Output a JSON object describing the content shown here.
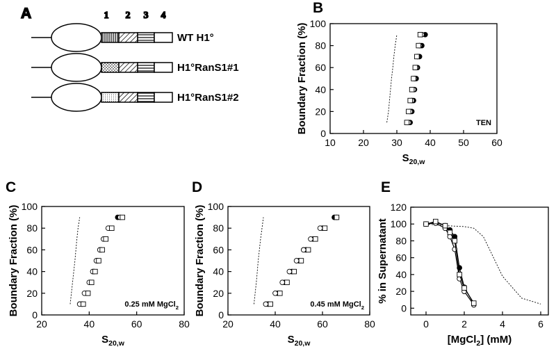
{
  "panel_labels": [
    "A",
    "B",
    "C",
    "D",
    "E"
  ],
  "diagram": {
    "domain_labels": [
      "1",
      "2",
      "3",
      "4"
    ],
    "constructs": [
      "WT H1°",
      "H1°RanS1#1",
      "H1°RanS1#2"
    ]
  },
  "chart_data": [
    {
      "type": "scatter",
      "x_label": [
        "S",
        "20,w"
      ],
      "y_label": "Boundary Fraction (%)",
      "annotation": [
        "TEN"
      ],
      "xlim": [
        10,
        60
      ],
      "xticks": [
        10,
        20,
        30,
        40,
        50,
        60
      ],
      "ylim": [
        0,
        100
      ],
      "yticks": [
        0,
        20,
        40,
        60,
        80,
        100
      ],
      "series": [
        {
          "style": "dashed",
          "x": [
            27,
            27.5,
            27.8,
            28.1,
            28.4,
            28.8,
            29.1,
            29.5,
            30
          ],
          "values": [
            10,
            20,
            30,
            40,
            50,
            60,
            70,
            80,
            90
          ]
        },
        {
          "style": "filled-circle",
          "x": [
            34,
            34.5,
            35,
            35.3,
            35.8,
            36.2,
            36.8,
            37.5,
            38.5
          ],
          "values": [
            10,
            20,
            30,
            40,
            50,
            60,
            70,
            80,
            90
          ]
        },
        {
          "style": "open-circle",
          "x": [
            33.5,
            34,
            34.5,
            35,
            35.3,
            35.8,
            36.2,
            36.8,
            37.5
          ],
          "values": [
            10,
            20,
            30,
            40,
            50,
            60,
            70,
            80,
            90
          ]
        },
        {
          "style": "open-square",
          "x": [
            33,
            33.5,
            34,
            34.5,
            35,
            35.5,
            36,
            36.5,
            37
          ],
          "values": [
            10,
            20,
            30,
            40,
            50,
            60,
            70,
            80,
            90
          ]
        }
      ]
    },
    {
      "type": "scatter",
      "x_label": [
        "S",
        "20,w"
      ],
      "y_label": "Boundary Fraction (%)",
      "annotation": [
        "0.25 mM MgCl",
        "2"
      ],
      "xlim": [
        20,
        80
      ],
      "xticks": [
        20,
        40,
        60,
        80
      ],
      "ylim": [
        0,
        100
      ],
      "yticks": [
        0,
        20,
        40,
        60,
        80,
        100
      ],
      "series": [
        {
          "style": "dashed",
          "x": [
            32,
            32.5,
            33,
            33.5,
            34,
            34.4,
            34.8,
            35.3,
            36
          ],
          "values": [
            10,
            20,
            30,
            40,
            50,
            60,
            70,
            80,
            90
          ]
        },
        {
          "style": "filled-circle",
          "x": [
            37,
            39,
            40.5,
            42,
            43.5,
            45,
            46.5,
            48.5,
            52
          ],
          "values": [
            10,
            20,
            30,
            40,
            50,
            60,
            70,
            80,
            90
          ]
        },
        {
          "style": "open-circle",
          "x": [
            36,
            38,
            40,
            41.5,
            43,
            44.5,
            46,
            48,
            53
          ],
          "values": [
            10,
            20,
            30,
            40,
            50,
            60,
            70,
            80,
            90
          ]
        },
        {
          "style": "open-square",
          "x": [
            37.5,
            39.5,
            41,
            42.5,
            44,
            45.5,
            47,
            49.5,
            54
          ],
          "values": [
            10,
            20,
            30,
            40,
            50,
            60,
            70,
            80,
            90
          ]
        }
      ]
    },
    {
      "type": "scatter",
      "x_label": [
        "S",
        "20,w"
      ],
      "y_label": "Boundary Fraction (%)",
      "annotation": [
        "0.45 mM MgCl",
        "2"
      ],
      "xlim": [
        20,
        80
      ],
      "xticks": [
        20,
        40,
        60,
        80
      ],
      "ylim": [
        0,
        100
      ],
      "yticks": [
        0,
        20,
        40,
        60,
        80,
        100
      ],
      "series": [
        {
          "style": "dashed",
          "x": [
            31,
            31.5,
            32,
            32.4,
            32.8,
            33.3,
            33.8,
            34.4,
            35
          ],
          "values": [
            10,
            20,
            30,
            40,
            50,
            60,
            70,
            80,
            90
          ]
        },
        {
          "style": "filled-circle",
          "x": [
            37,
            41,
            44,
            47,
            50,
            53,
            56,
            60,
            65
          ],
          "values": [
            10,
            20,
            30,
            40,
            50,
            60,
            70,
            80,
            90
          ]
        },
        {
          "style": "open-circle",
          "x": [
            36,
            40,
            43,
            46,
            49,
            52,
            55,
            59,
            66
          ],
          "values": [
            10,
            20,
            30,
            40,
            50,
            60,
            70,
            80,
            90
          ]
        },
        {
          "style": "open-square",
          "x": [
            38,
            42,
            45,
            48,
            51,
            54,
            57,
            61,
            66
          ],
          "values": [
            10,
            20,
            30,
            40,
            50,
            60,
            70,
            80,
            90
          ]
        }
      ]
    },
    {
      "type": "line",
      "x_label": [
        "[MgCl",
        "2",
        "] (mM)"
      ],
      "y_label": "% in Supernatant",
      "xlim": [
        -0.8,
        6.4
      ],
      "xticks": [
        0,
        2,
        4,
        6
      ],
      "ylim": [
        -8,
        120
      ],
      "yticks": [
        0,
        20,
        40,
        60,
        80,
        100,
        120
      ],
      "series": [
        {
          "style": "dashed",
          "x": [
            0,
            1,
            2,
            2.5,
            3,
            4,
            5,
            6
          ],
          "values": [
            100,
            98,
            97,
            95,
            85,
            38,
            12,
            5
          ]
        },
        {
          "style": "filled-circle",
          "x": [
            0,
            0.5,
            1,
            1.25,
            1.5,
            1.75,
            2,
            2.5
          ],
          "values": [
            100,
            102,
            98,
            93,
            85,
            48,
            25,
            5
          ]
        },
        {
          "style": "open-circle",
          "x": [
            0,
            0.5,
            1,
            1.25,
            1.5,
            1.75,
            2,
            2.5
          ],
          "values": [
            100,
            101,
            95,
            85,
            70,
            35,
            20,
            4
          ]
        },
        {
          "style": "open-square",
          "x": [
            0,
            0.5,
            1,
            1.25,
            1.5,
            1.75,
            2,
            2.5
          ],
          "values": [
            100,
            103,
            98,
            90,
            80,
            40,
            24,
            6
          ]
        }
      ]
    }
  ]
}
